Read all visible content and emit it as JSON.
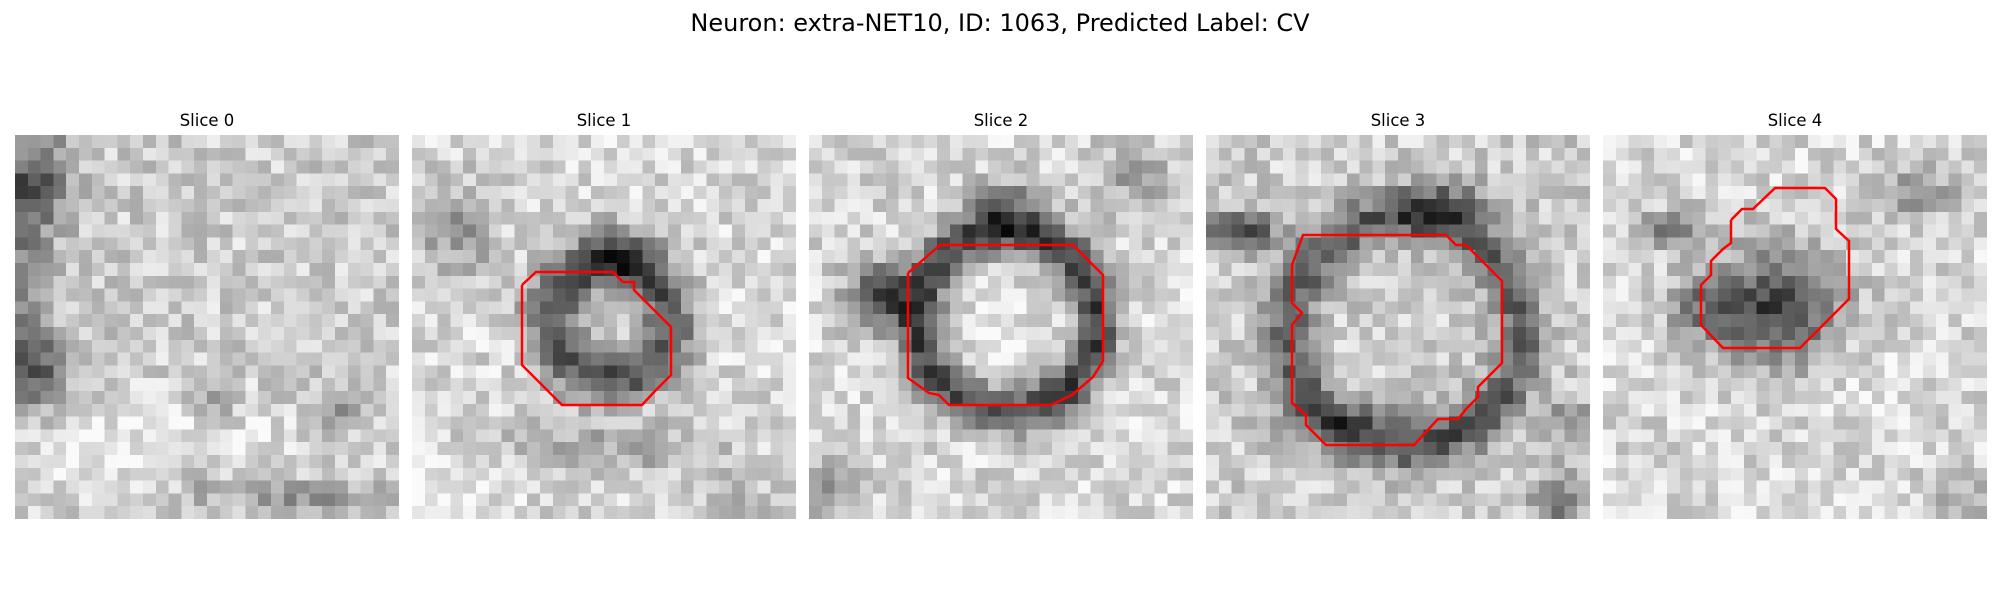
{
  "figure": {
    "title": "Neuron: extra-NET10, ID: 1063, Predicted Label: CV",
    "contour_color": "#ff0000"
  },
  "slices": [
    {
      "title": "Slice 0",
      "has_contour": false
    },
    {
      "title": "Slice 1",
      "has_contour": true
    },
    {
      "title": "Slice 2",
      "has_contour": true
    },
    {
      "title": "Slice 3",
      "has_contour": true
    },
    {
      "title": "Slice 4",
      "has_contour": true
    }
  ]
}
